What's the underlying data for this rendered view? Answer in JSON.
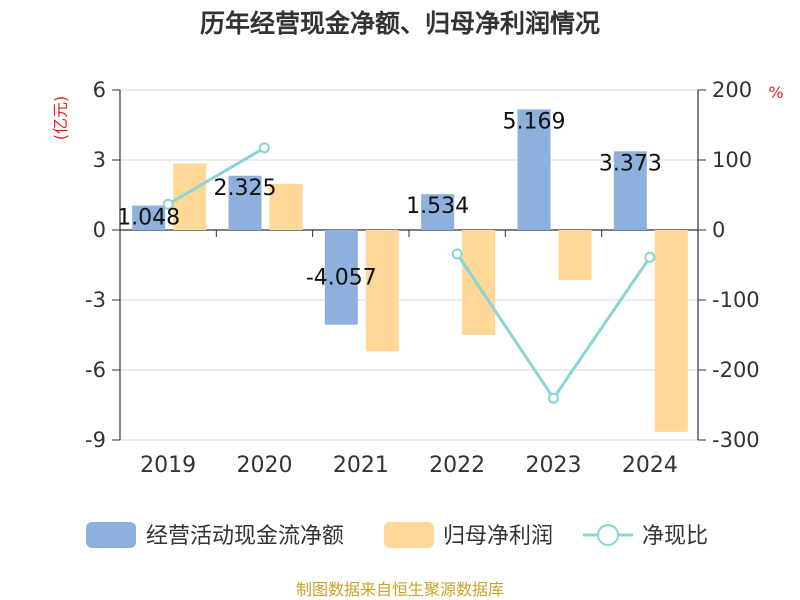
{
  "chart_data": {
    "type": "bar",
    "title": "历年经营现金净额、归母净利润情况",
    "categories": [
      "2019",
      "2020",
      "2021",
      "2022",
      "2023",
      "2024"
    ],
    "left_axis": {
      "unit": "(亿元)",
      "ylim": [
        -9,
        6
      ],
      "ticks": [
        "6",
        "3",
        "0",
        "-3",
        "-6",
        "-9"
      ]
    },
    "right_axis": {
      "unit": "%",
      "ylim": [
        -300,
        200
      ],
      "ticks": [
        "200",
        "100",
        "0",
        "-100",
        "-200",
        "-300"
      ]
    },
    "series": [
      {
        "name": "经营活动现金流净额",
        "type": "bar",
        "axis": "left",
        "color": "#8eb0dc",
        "values": [
          1.048,
          2.325,
          -4.057,
          1.534,
          5.169,
          3.373
        ],
        "labels": [
          "1.048",
          "2.325",
          "-4.057",
          "1.534",
          "5.169",
          "3.373"
        ]
      },
      {
        "name": "归母净利润",
        "type": "bar",
        "axis": "left",
        "color": "#ffd898",
        "values": [
          2.85,
          1.98,
          -5.2,
          -4.5,
          -2.15,
          -8.65
        ]
      },
      {
        "name": "净现比",
        "type": "line",
        "axis": "right",
        "color": "#88d4d8",
        "values": [
          36.8,
          117.4,
          null,
          -34.1,
          -240.4,
          -39.0
        ]
      }
    ],
    "grid": true,
    "legend_position": "bottom"
  },
  "colors": {
    "unit_red": "#dd2222",
    "source_gold": "#c9a227"
  },
  "source_text": "制图数据来自恒生聚源数据库"
}
